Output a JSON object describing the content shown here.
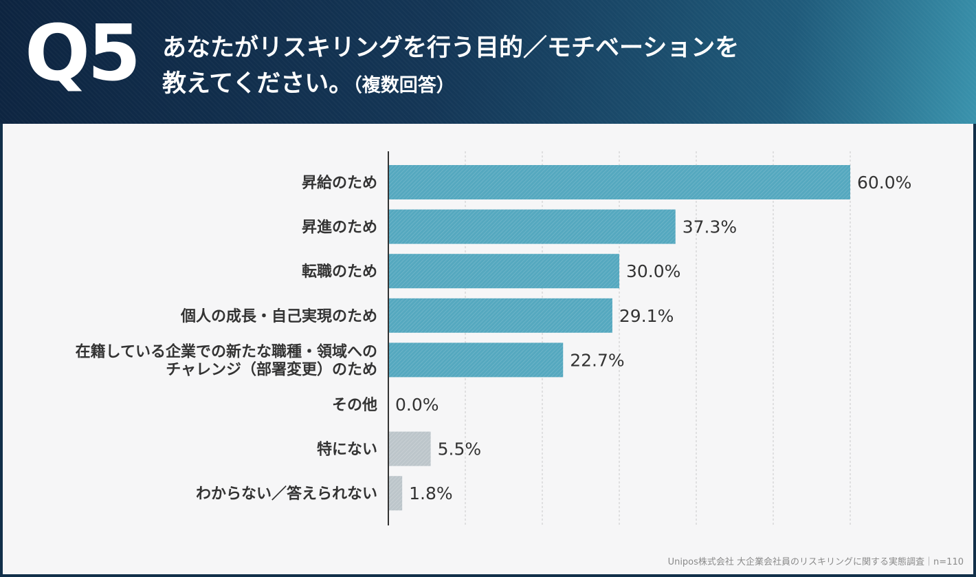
{
  "header": {
    "question_number": "Q5",
    "title_line1": "あなたがリスキリングを行う目的／モチベーションを",
    "title_line2": "教えてください。",
    "title_suffix": "（複数回答）"
  },
  "footer": {
    "source": "Unipos株式会社 大企業会社員のリスキリングに関する実態調査｜n=110"
  },
  "colors": {
    "bar_main": "#55a8bf",
    "bar_gray": "#bcc5ca",
    "grid": "#c8c8c8",
    "axis": "#333333"
  },
  "chart_data": {
    "type": "bar",
    "orientation": "horizontal",
    "title": "あなたがリスキリングを行う目的／モチベーションを教えてください。（複数回答）",
    "xlim": [
      0,
      60
    ],
    "grid": true,
    "categories": [
      [
        "昇給のため"
      ],
      [
        "昇進のため"
      ],
      [
        "転職のため"
      ],
      [
        "個人の成長・自己実現のため"
      ],
      [
        "在籍している企業での新たな職種・領域への",
        "チャレンジ（部署変更）のため"
      ],
      [
        "その他"
      ],
      [
        "特にない"
      ],
      [
        "わからない／答えられない"
      ]
    ],
    "values": [
      60.0,
      37.3,
      30.0,
      29.1,
      22.7,
      0.0,
      5.5,
      1.8
    ],
    "value_labels": [
      "60.0%",
      "37.3%",
      "30.0%",
      "29.1%",
      "22.7%",
      "0.0%",
      "5.5%",
      "1.8%"
    ],
    "bar_color_keys": [
      "main",
      "main",
      "main",
      "main",
      "main",
      "main",
      "gray",
      "gray"
    ]
  }
}
